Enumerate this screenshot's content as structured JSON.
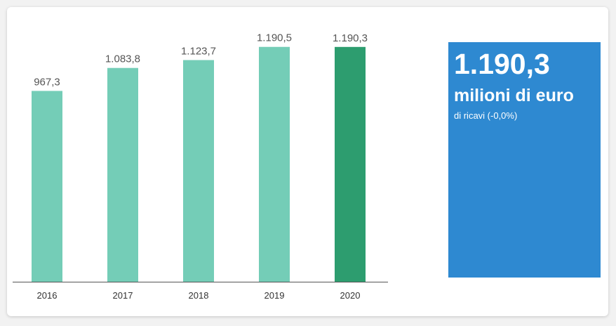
{
  "chart_data": {
    "type": "bar",
    "categories": [
      "2016",
      "2017",
      "2018",
      "2019",
      "2020"
    ],
    "values": [
      967.3,
      1083.8,
      1123.7,
      1190.5,
      1190.3
    ],
    "value_labels": [
      "967,3",
      "1.083,8",
      "1.123,7",
      "1.190,5",
      "1.190,3"
    ],
    "ylim": [
      0,
      1300
    ],
    "grid": false,
    "legend": "none",
    "highlight_index": 4
  },
  "colors": {
    "bar": "#74cdb7",
    "bar_highlight": "#2d9d6f",
    "kpi_background": "#2e89d1",
    "axis": "#555555",
    "label_text": "#555555",
    "tick_text": "#333333"
  },
  "kpi": {
    "value": "1.190,3",
    "unit": "milioni di euro",
    "note": "di ricavi (-0,0%)"
  }
}
